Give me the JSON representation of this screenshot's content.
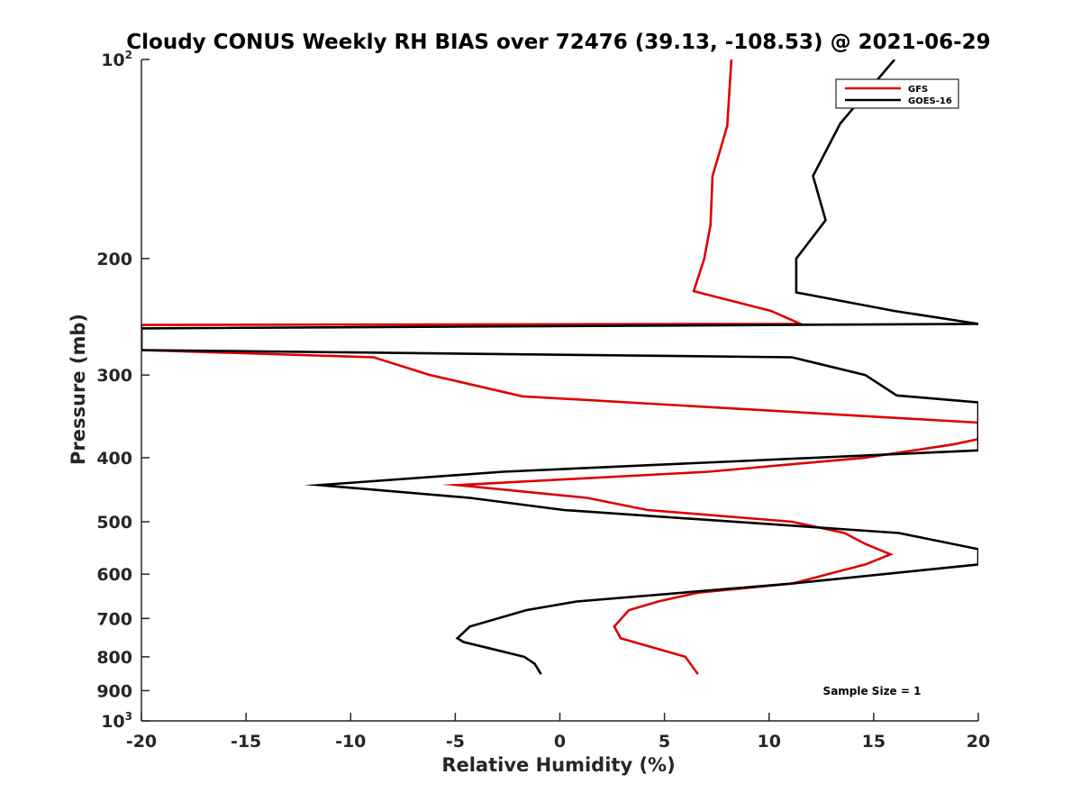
{
  "chart_data": {
    "type": "line",
    "title": "Cloudy CONUS Weekly RH BIAS over 72476 (39.13, -108.53) @ 2021-06-29",
    "xlabel": "Relative Humidity (%)",
    "ylabel": "Pressure (mb)",
    "xlim": [
      -20,
      20
    ],
    "ylim": [
      100,
      1000
    ],
    "yscale": "log",
    "y_reversed": true,
    "xticks": [
      "-20",
      "-15",
      "-10",
      "-5",
      "0",
      "5",
      "10",
      "15",
      "20"
    ],
    "yticks": [
      {
        "value": 100,
        "base": "10",
        "exp": "2"
      },
      {
        "value": 200,
        "label": "200"
      },
      {
        "value": 300,
        "label": "300"
      },
      {
        "value": 400,
        "label": "400"
      },
      {
        "value": 500,
        "label": "500"
      },
      {
        "value": 600,
        "label": "600"
      },
      {
        "value": 700,
        "label": "700"
      },
      {
        "value": 800,
        "label": "800"
      },
      {
        "value": 900,
        "label": "900"
      },
      {
        "value": 1000,
        "base": "10",
        "exp": "3"
      }
    ],
    "legend_position": "top-right",
    "annotation": "Sample Size = 1",
    "series": [
      {
        "name": "GFS",
        "color": "#dd0000",
        "x": [
          8.2,
          8.0,
          7.3,
          7.2,
          6.9,
          6.4,
          10.1,
          11.5,
          -20,
          -20,
          -20,
          -8.9,
          -6.2,
          -1.8,
          20,
          20,
          18.8,
          14.6,
          7.1,
          -4.9,
          1.3,
          4.2,
          11.1,
          13.6,
          14.6,
          15.8,
          14.6,
          12.8,
          11.1,
          6.6,
          4.7,
          3.3,
          2.6,
          2.9,
          6.0,
          6.6
        ],
        "y": [
          100,
          126,
          150,
          178,
          200,
          224,
          240,
          251,
          252,
          260,
          275,
          282,
          300,
          323,
          354,
          375,
          382,
          400,
          420,
          440,
          460,
          480,
          500,
          520,
          540,
          560,
          580,
          600,
          620,
          640,
          660,
          680,
          720,
          750,
          800,
          850
        ]
      },
      {
        "name": "GOES-16",
        "color": "#000000",
        "x": [
          16.0,
          13.4,
          12.1,
          12.7,
          11.3,
          11.3,
          16.0,
          20,
          -20,
          -20,
          -20,
          11.1,
          14.6,
          16.1,
          20,
          20,
          -2.7,
          -11.5,
          -4.3,
          0.2,
          16.2,
          20,
          20,
          11.1,
          0.8,
          -1.6,
          -4.3,
          -4.9,
          -4.6,
          -3.5,
          -1.7,
          -1.2,
          -0.9
        ],
        "y": [
          100,
          125,
          150,
          175,
          200,
          225,
          240,
          251,
          255,
          268,
          275,
          282,
          300,
          322,
          330,
          390,
          420,
          440,
          460,
          480,
          520,
          550,
          580,
          620,
          660,
          680,
          720,
          750,
          760,
          775,
          800,
          820,
          850
        ]
      }
    ]
  }
}
